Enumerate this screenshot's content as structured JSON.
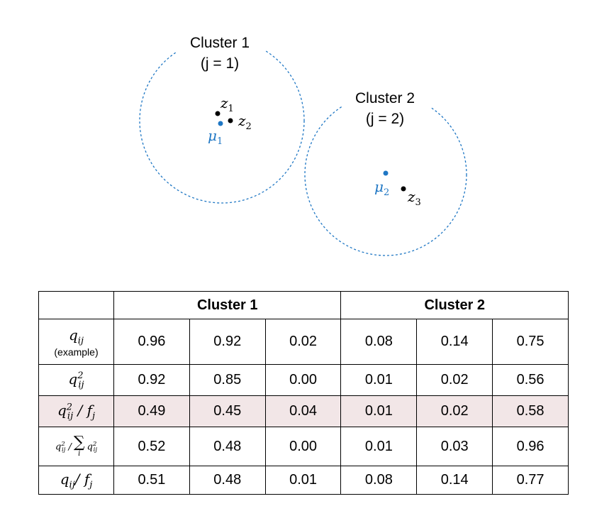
{
  "diagram": {
    "cluster1": {
      "title": "Cluster 1",
      "subtitle": "(j = 1)",
      "centroid_label": "μ",
      "centroid_index": "1"
    },
    "cluster2": {
      "title": "Cluster 2",
      "subtitle": "(j = 2)",
      "centroid_label": "μ",
      "centroid_index": "2"
    },
    "points": [
      {
        "label": "z",
        "index": "1"
      },
      {
        "label": "z",
        "index": "2"
      },
      {
        "label": "z",
        "index": "3"
      }
    ],
    "colors": {
      "cluster": "#1f77c4",
      "point": "#000000"
    }
  },
  "table": {
    "headers": [
      "Cluster 1",
      "Cluster 2"
    ],
    "rows": [
      {
        "label": "q_ij",
        "note": "(example)",
        "values": [
          "0.96",
          "0.92",
          "0.02",
          "0.08",
          "0.14",
          "0.75"
        ]
      },
      {
        "label": "q_ij^2",
        "values": [
          "0.92",
          "0.85",
          "0.00",
          "0.01",
          "0.02",
          "0.56"
        ]
      },
      {
        "label": "q_ij^2 / f_j",
        "values": [
          "0.49",
          "0.45",
          "0.04",
          "0.01",
          "0.02",
          "0.58"
        ],
        "highlight": true
      },
      {
        "label": "q_ij^2 / sum_i q_ij^2",
        "values": [
          "0.52",
          "0.48",
          "0.00",
          "0.01",
          "0.03",
          "0.96"
        ]
      },
      {
        "label": "q_ij / f_j",
        "values": [
          "0.51",
          "0.48",
          "0.01",
          "0.08",
          "0.14",
          "0.77"
        ]
      }
    ],
    "highlight_color": "#f2e6e7"
  }
}
